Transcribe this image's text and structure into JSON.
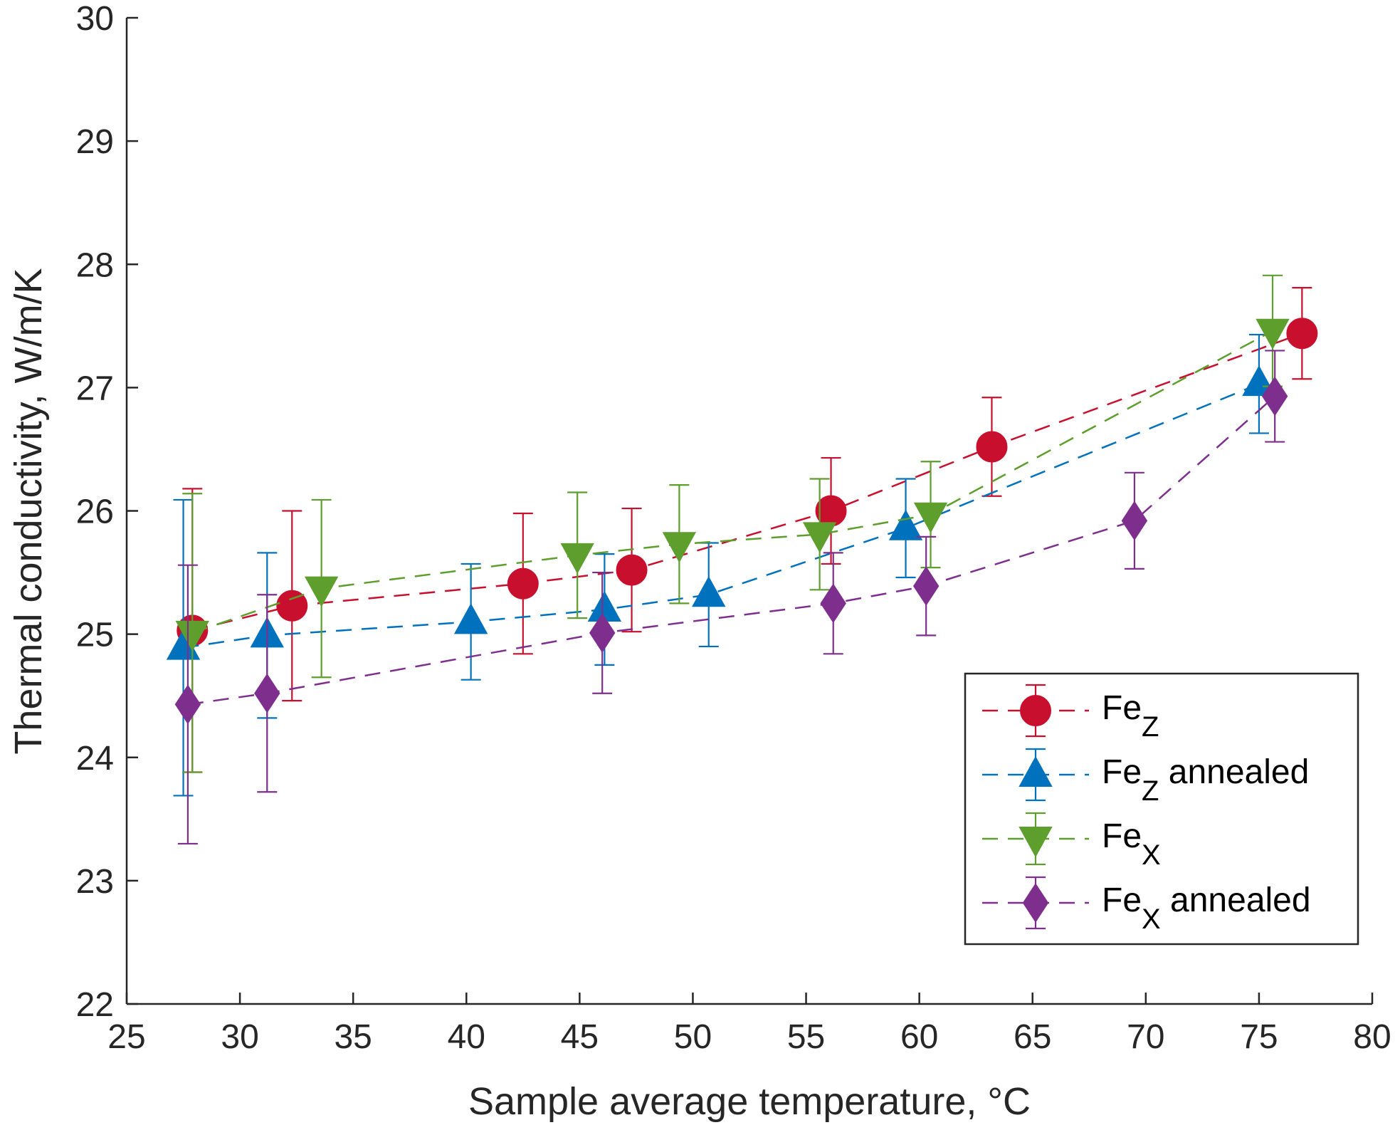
{
  "chart_data": {
    "type": "scatter",
    "title": "",
    "xlabel": "Sample average temperature, °C",
    "ylabel": "Thermal conductivity, W/m/K",
    "xlim": [
      25,
      80
    ],
    "ylim": [
      22,
      30
    ],
    "xticks": [
      "25",
      "30",
      "35",
      "40",
      "45",
      "50",
      "55",
      "60",
      "65",
      "70",
      "75",
      "80"
    ],
    "yticks": [
      "22",
      "23",
      "24",
      "25",
      "26",
      "27",
      "28",
      "29",
      "30"
    ],
    "grid": false,
    "legend_position": "bottom-right",
    "series": [
      {
        "name": "Fe",
        "sub": "Z",
        "suffix": "",
        "marker": "circle",
        "color": "#c8102e",
        "x": [
          27.9,
          32.3,
          42.5,
          47.3,
          56.1,
          63.2,
          76.9
        ],
        "y": [
          25.03,
          25.23,
          25.41,
          25.52,
          26.0,
          26.52,
          27.44
        ],
        "err": [
          1.15,
          0.77,
          0.57,
          0.5,
          0.43,
          0.4,
          0.37
        ]
      },
      {
        "name": "Fe",
        "sub": "Z",
        "suffix": " annealed",
        "marker": "triangle-up",
        "color": "#0072bd",
        "x": [
          27.5,
          31.2,
          40.2,
          46.1,
          50.7,
          59.4,
          75.0
        ],
        "y": [
          24.89,
          24.99,
          25.1,
          25.2,
          25.32,
          25.86,
          27.03
        ],
        "err": [
          1.2,
          0.67,
          0.47,
          0.45,
          0.42,
          0.4,
          0.4
        ]
      },
      {
        "name": "Fe",
        "sub": "X",
        "suffix": "",
        "marker": "triangle-down",
        "color": "#5e9e2d",
        "x": [
          27.9,
          33.6,
          44.9,
          49.4,
          55.6,
          60.5,
          75.6
        ],
        "y": [
          25.01,
          25.37,
          25.64,
          25.73,
          25.81,
          25.97,
          27.46
        ],
        "err": [
          1.13,
          0.72,
          0.51,
          0.48,
          0.45,
          0.43,
          0.45
        ]
      },
      {
        "name": "Fe",
        "sub": "X",
        "suffix": " annealed",
        "marker": "diamond",
        "color": "#7e2f8e",
        "x": [
          27.7,
          31.2,
          46.0,
          56.2,
          60.3,
          69.5,
          75.7
        ],
        "y": [
          24.43,
          24.52,
          25.01,
          25.25,
          25.39,
          25.92,
          26.93
        ],
        "err": [
          1.13,
          0.8,
          0.49,
          0.41,
          0.4,
          0.39,
          0.37
        ]
      }
    ]
  }
}
